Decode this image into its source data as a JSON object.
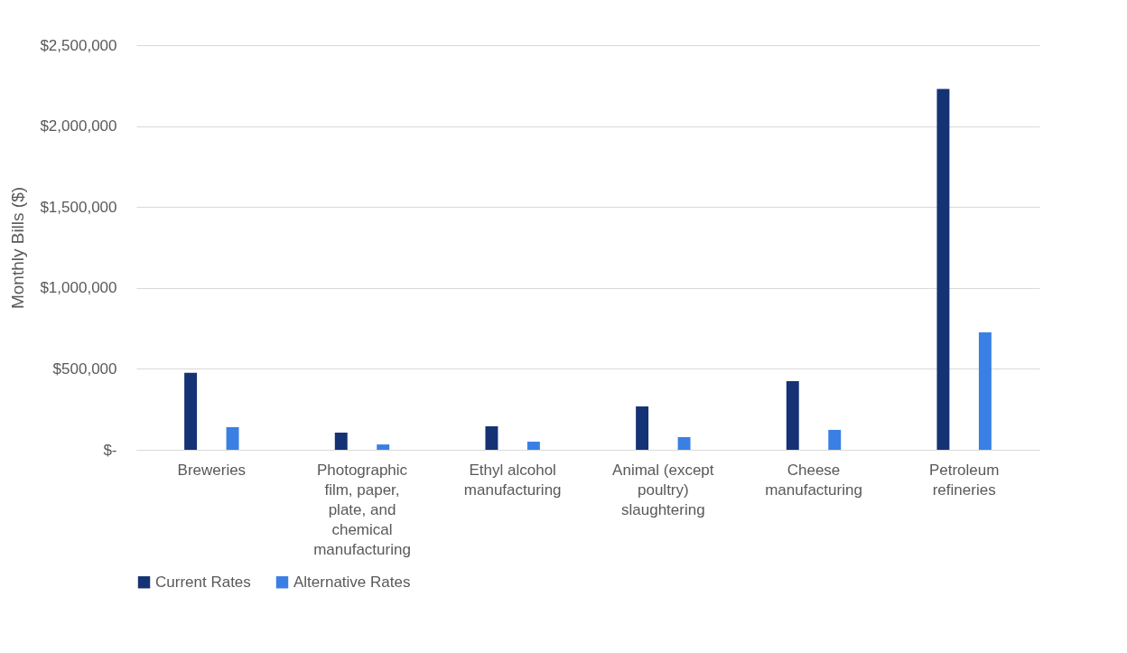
{
  "chart_data": {
    "type": "bar",
    "ylabel": "Monthly Bills ($)",
    "categories": [
      "Breweries",
      "Photographic film, paper, plate, and chemical manufacturing",
      "Ethyl alcohol manufacturing",
      "Animal (except poultry) slaughtering",
      "Cheese manufacturing",
      "Petroleum refineries"
    ],
    "series": [
      {
        "name": "Current Rates",
        "color": "#153275",
        "values": [
          476000,
          106000,
          145000,
          268000,
          424000,
          2230000
        ]
      },
      {
        "name": "Alternative Rates",
        "color": "#3a7fe4",
        "values": [
          140000,
          33000,
          50000,
          78000,
          123000,
          725000
        ]
      }
    ],
    "ylim": [
      0,
      2500000
    ],
    "yticks": [
      {
        "value": 0,
        "label": "$-"
      },
      {
        "value": 500000,
        "label": "$500,000"
      },
      {
        "value": 1000000,
        "label": "$1,000,000"
      },
      {
        "value": 1500000,
        "label": "$1,500,000"
      },
      {
        "value": 2000000,
        "label": "$2,000,000"
      },
      {
        "value": 2500000,
        "label": "$2,500,000"
      }
    ],
    "grid": "y",
    "legend": "bottom"
  }
}
